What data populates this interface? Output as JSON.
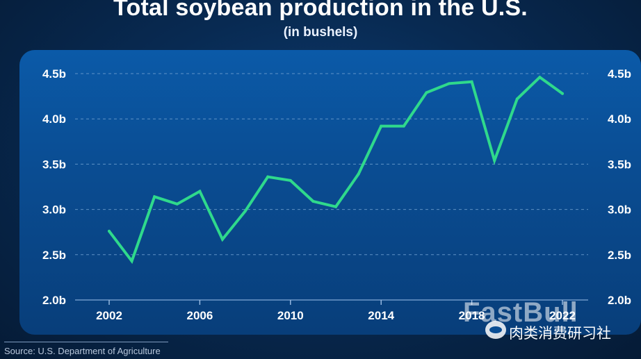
{
  "header": {
    "title": "Total soybean production in the U.S.",
    "subtitle": "(in bushels)"
  },
  "footer": {
    "source": "Source: U.S. Department of Agriculture"
  },
  "watermark": {
    "logo_text": "FastBull",
    "wechat_text": "肉类消费研习社"
  },
  "colors": {
    "line": "#2fd98c",
    "grid": "#6f9fd0",
    "text": "#ffffff"
  },
  "chart_data": {
    "type": "line",
    "title": "Total soybean production in the U.S.",
    "subtitle": "(in bushels)",
    "xlabel": "",
    "ylabel": "",
    "x": [
      2002,
      2003,
      2004,
      2005,
      2006,
      2007,
      2008,
      2009,
      2010,
      2011,
      2012,
      2013,
      2014,
      2015,
      2016,
      2017,
      2018,
      2019,
      2020,
      2021,
      2022
    ],
    "values": [
      2.76,
      2.43,
      3.14,
      3.06,
      3.2,
      2.67,
      2.98,
      3.36,
      3.32,
      3.09,
      3.03,
      3.39,
      3.92,
      3.92,
      4.29,
      4.39,
      4.41,
      3.54,
      4.22,
      4.46,
      4.28
    ],
    "xticks": [
      2002,
      2006,
      2010,
      2014,
      2018,
      2022
    ],
    "xtick_labels": [
      "2002",
      "2006",
      "2010",
      "2014",
      "2018",
      "2022"
    ],
    "yticks": [
      2.0,
      2.5,
      3.0,
      3.5,
      4.0,
      4.5
    ],
    "ytick_labels": [
      "2.0b",
      "2.5b",
      "3.0b",
      "3.5b",
      "4.0b",
      "4.5b"
    ],
    "ylim": [
      2.0,
      4.5
    ],
    "xlim": [
      2000,
      2023
    ],
    "grid": "horizontal dashed",
    "legend": "none"
  }
}
